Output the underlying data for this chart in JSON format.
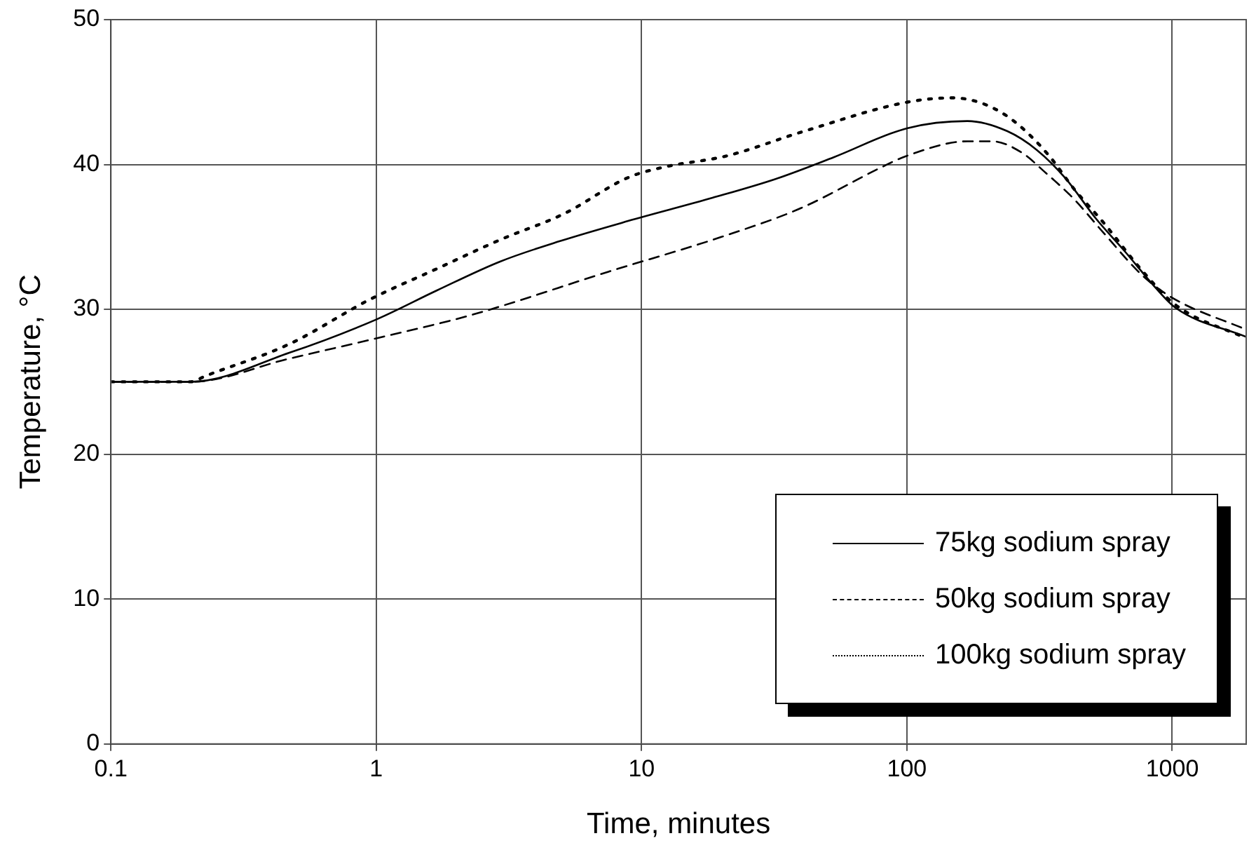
{
  "chart_data": {
    "type": "line",
    "xlabel": "Time, minutes",
    "ylabel": "Temperature, °C",
    "log": "x",
    "xlim": [
      0.1,
      1900
    ],
    "xticks": [
      0.1,
      1,
      10,
      100,
      1000
    ],
    "ylim": [
      0,
      50
    ],
    "yticks": [
      0,
      10,
      20,
      30,
      40,
      50
    ],
    "grid": true,
    "legend": "bottom right",
    "marker": "none",
    "series": [
      {
        "name": "75kg sodium spray",
        "color": "#000000",
        "line_style": "solid",
        "x": [
          0.1,
          0.2,
          0.47,
          1,
          1.69,
          2.93,
          4.9,
          8.9,
          18.5,
          32,
          53,
          100,
          169,
          239,
          309,
          398,
          514,
          663,
          855,
          1030,
          1900
        ],
        "values": [
          25,
          25,
          27,
          29.3,
          31.3,
          33.3,
          34.7,
          36.1,
          37.7,
          39,
          40.5,
          42.5,
          43,
          42.3,
          41,
          39,
          36.3,
          34,
          31.6,
          30.1,
          28.1
        ]
      },
      {
        "name": "50kg sodium spray",
        "color": "#000000",
        "line_style": "dashed",
        "x": [
          0.1,
          0.2,
          0.47,
          1,
          2.27,
          7.5,
          20,
          40,
          80,
          100,
          169,
          210,
          272,
          330,
          427,
          550,
          776,
          1000,
          1900
        ],
        "values": [
          25,
          25,
          26.6,
          28,
          29.6,
          32.6,
          35,
          37,
          39.8,
          40.6,
          41.6,
          41.6,
          40.8,
          39.5,
          37.6,
          35.3,
          32.3,
          30.8,
          28.6
        ]
      },
      {
        "name": "100kg sodium spray",
        "color": "#000000",
        "line_style": "dotted",
        "x": [
          0.1,
          0.2,
          0.227,
          0.47,
          0.95,
          1.69,
          2.93,
          5.1,
          8.9,
          12,
          21,
          41,
          100,
          149,
          200,
          257,
          340,
          427,
          550,
          776,
          1030,
          1900
        ],
        "values": [
          25,
          25,
          25.4,
          27.6,
          30.7,
          32.8,
          34.8,
          36.6,
          39.1,
          39.8,
          40.6,
          42.3,
          44.3,
          44.6,
          44.1,
          42.9,
          40.7,
          38.3,
          36,
          32.6,
          30.3,
          28
        ]
      }
    ]
  }
}
